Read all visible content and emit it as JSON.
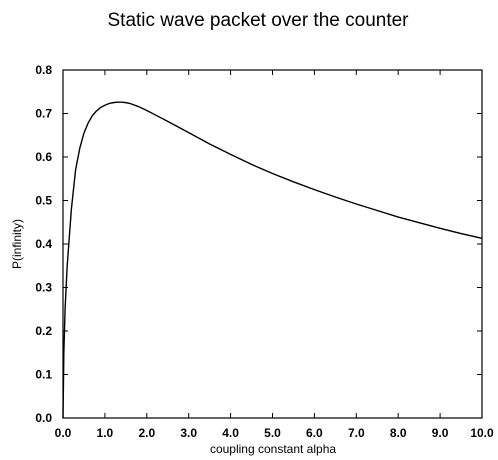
{
  "chart_data": {
    "type": "line",
    "title": "Static wave packet over the counter",
    "xlabel": "coupling constant alpha",
    "ylabel": "P(infinity)",
    "xlim": [
      0.0,
      10.0
    ],
    "ylim": [
      0.0,
      0.8
    ],
    "x_ticks": [
      "0.0",
      "1.0",
      "2.0",
      "3.0",
      "4.0",
      "5.0",
      "6.0",
      "7.0",
      "8.0",
      "9.0",
      "10.0"
    ],
    "y_ticks": [
      "0.0",
      "0.1",
      "0.2",
      "0.3",
      "0.4",
      "0.5",
      "0.6",
      "0.7",
      "0.8"
    ],
    "grid": false,
    "series": [
      {
        "x": [
          0.0,
          0.02,
          0.05,
          0.1,
          0.2,
          0.3,
          0.4,
          0.5,
          0.6,
          0.7,
          0.8,
          0.9,
          1.0,
          1.1,
          1.2,
          1.3,
          1.4,
          1.5,
          1.6,
          1.8,
          2.0,
          2.2,
          2.5,
          3.0,
          3.5,
          4.0,
          4.5,
          5.0,
          5.5,
          6.0,
          6.5,
          7.0,
          7.5,
          8.0,
          8.5,
          9.0,
          9.5,
          10.0
        ],
        "y": [
          0.0,
          0.15,
          0.25,
          0.35,
          0.48,
          0.57,
          0.62,
          0.655,
          0.678,
          0.695,
          0.706,
          0.714,
          0.719,
          0.723,
          0.725,
          0.726,
          0.726,
          0.725,
          0.723,
          0.716,
          0.707,
          0.697,
          0.682,
          0.656,
          0.63,
          0.606,
          0.583,
          0.562,
          0.543,
          0.525,
          0.508,
          0.492,
          0.477,
          0.462,
          0.449,
          0.436,
          0.424,
          0.413
        ],
        "color": "#000000"
      }
    ]
  }
}
